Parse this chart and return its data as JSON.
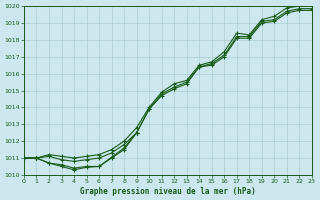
{
  "x": [
    0,
    1,
    2,
    3,
    4,
    5,
    6,
    7,
    8,
    9,
    10,
    11,
    12,
    13,
    14,
    15,
    16,
    17,
    18,
    19,
    20,
    21,
    22,
    23
  ],
  "series_upper": [
    1011.0,
    1011.0,
    1011.2,
    1011.1,
    1011.0,
    1011.1,
    1011.2,
    1011.5,
    1012.0,
    1012.8,
    1014.0,
    1014.9,
    1015.4,
    1015.6,
    1016.5,
    1016.7,
    1017.3,
    1018.4,
    1018.3,
    1019.2,
    1019.4,
    1019.9,
    1020.0,
    1020.0
  ],
  "series_mid": [
    1011.0,
    1011.0,
    1011.1,
    1010.9,
    1010.8,
    1010.9,
    1011.0,
    1011.3,
    1011.8,
    1012.5,
    1013.9,
    1014.8,
    1015.2,
    1015.5,
    1016.4,
    1016.6,
    1017.1,
    1018.2,
    1018.2,
    1019.1,
    1019.2,
    1019.7,
    1019.85,
    1019.85
  ],
  "series_low": [
    1011.0,
    1011.0,
    1010.7,
    1010.6,
    1010.4,
    1010.5,
    1010.5,
    1011.0,
    1011.5,
    1012.5,
    1013.9,
    1014.7,
    1015.1,
    1015.4,
    1016.4,
    1016.5,
    1017.0,
    1018.1,
    1018.1,
    1019.0,
    1019.1,
    1019.6,
    1019.75,
    1019.75
  ],
  "series_dip": [
    1011.0,
    1011.0,
    1010.7,
    1010.6,
    1010.3,
    1010.5,
    1010.5,
    1011.1,
    1011.7,
    1012.5,
    null,
    null,
    null,
    null,
    null,
    null,
    null,
    null,
    null,
    null,
    null,
    null,
    null,
    null
  ],
  "xlim": [
    0,
    23
  ],
  "ylim": [
    1010,
    1020
  ],
  "yticks": [
    1010,
    1011,
    1012,
    1013,
    1014,
    1015,
    1016,
    1017,
    1018,
    1019,
    1020
  ],
  "xticks": [
    0,
    1,
    2,
    3,
    4,
    5,
    6,
    7,
    8,
    9,
    10,
    11,
    12,
    13,
    14,
    15,
    16,
    17,
    18,
    19,
    20,
    21,
    22,
    23
  ],
  "xlabel": "Graphe pression niveau de la mer (hPa)",
  "line_color": "#1a5c1a",
  "bg_color": "#cce8ee",
  "grid_color": "#aacdd4",
  "marker": "+",
  "marker_size": 3.5,
  "linewidth": 0.8
}
